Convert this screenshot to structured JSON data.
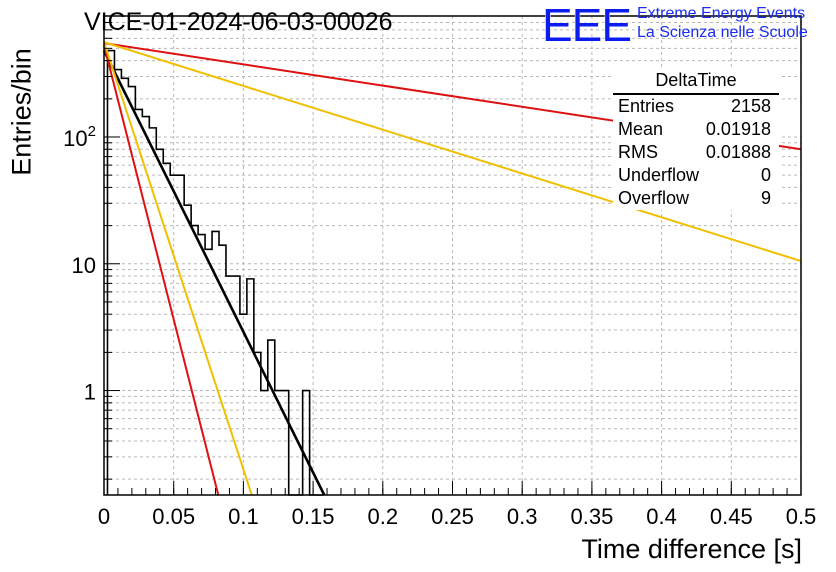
{
  "title": "VICE-01-2024-06-03-00026",
  "logo": {
    "mark": "EEE",
    "line1": "Extreme Energy Events",
    "line2": "La Scienza nelle Scuole",
    "color": "#0b1cf0"
  },
  "stats": {
    "title": "DeltaTime",
    "rows": [
      {
        "label": "Entries",
        "value": "2158"
      },
      {
        "label": "Mean",
        "value": "0.01918"
      },
      {
        "label": "RMS",
        "value": "0.01888"
      },
      {
        "label": "Underflow",
        "value": "0"
      },
      {
        "label": "Overflow",
        "value": "9"
      }
    ]
  },
  "chart_data": {
    "type": "histogram",
    "xlabel": "Time difference [s]",
    "ylabel": "Entries/bin",
    "xlim": [
      0,
      0.5
    ],
    "ylim": [
      0.15,
      900
    ],
    "ylog": true,
    "grid": true,
    "x_ticks": [
      "0",
      "0.05",
      "0.1",
      "0.15",
      "0.2",
      "0.25",
      "0.3",
      "0.35",
      "0.4",
      "0.45",
      "0.5"
    ],
    "y_ticks": [
      {
        "value": 1,
        "label": "1"
      },
      {
        "value": 10,
        "label": "10"
      },
      {
        "value": 100,
        "label": "10²"
      }
    ],
    "bin_width": 0.005,
    "bins": [
      {
        "x": 0.005,
        "y": 480
      },
      {
        "x": 0.01,
        "y": 340
      },
      {
        "x": 0.015,
        "y": 290
      },
      {
        "x": 0.02,
        "y": 250
      },
      {
        "x": 0.025,
        "y": 165
      },
      {
        "x": 0.03,
        "y": 145
      },
      {
        "x": 0.035,
        "y": 118
      },
      {
        "x": 0.04,
        "y": 80
      },
      {
        "x": 0.045,
        "y": 62
      },
      {
        "x": 0.05,
        "y": 50
      },
      {
        "x": 0.055,
        "y": 50
      },
      {
        "x": 0.06,
        "y": 29
      },
      {
        "x": 0.065,
        "y": 20
      },
      {
        "x": 0.07,
        "y": 17
      },
      {
        "x": 0.075,
        "y": 13
      },
      {
        "x": 0.08,
        "y": 18
      },
      {
        "x": 0.085,
        "y": 14
      },
      {
        "x": 0.09,
        "y": 8
      },
      {
        "x": 0.095,
        "y": 8
      },
      {
        "x": 0.1,
        "y": 4
      },
      {
        "x": 0.105,
        "y": 7.6
      },
      {
        "x": 0.11,
        "y": 2
      },
      {
        "x": 0.115,
        "y": 1
      },
      {
        "x": 0.12,
        "y": 2.5
      },
      {
        "x": 0.125,
        "y": 1
      },
      {
        "x": 0.13,
        "y": 1
      },
      {
        "x": 0.135,
        "y": 0.15
      },
      {
        "x": 0.14,
        "y": 0.15
      },
      {
        "x": 0.145,
        "y": 1
      },
      {
        "x": 0.15,
        "y": 0.15
      },
      {
        "x": 0.155,
        "y": 0.15
      }
    ],
    "lines": [
      {
        "color": "#000000",
        "points": [
          [
            0,
            480
          ],
          [
            0.158,
            0.15
          ]
        ]
      },
      {
        "color": "#dd1111",
        "points": [
          [
            0,
            530
          ],
          [
            0.082,
            0.15
          ]
        ]
      },
      {
        "color": "#f0c000",
        "points": [
          [
            0,
            560
          ],
          [
            0.106,
            0.15
          ]
        ]
      },
      {
        "color": "#dd1111",
        "points": [
          [
            0,
            550
          ],
          [
            0.5,
            80
          ]
        ]
      },
      {
        "color": "#f0c000",
        "points": [
          [
            0,
            560
          ],
          [
            0.5,
            10.5
          ]
        ]
      }
    ]
  }
}
